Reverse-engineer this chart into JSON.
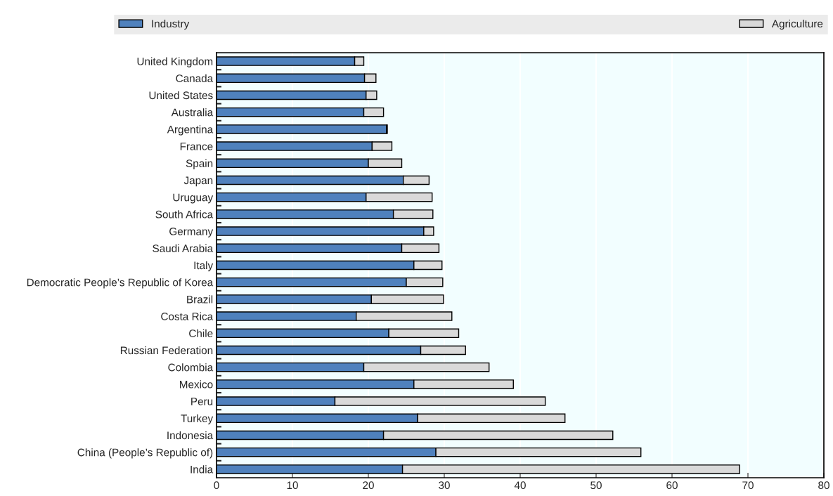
{
  "chart_data": {
    "type": "bar",
    "orientation": "horizontal",
    "stacked": true,
    "categories": [
      "United Kingdom",
      "Canada",
      "United States",
      "Australia",
      "Argentina",
      "France",
      "Spain",
      "Japan",
      "Uruguay",
      "South Africa",
      "Germany",
      "Saudi Arabia",
      "Italy",
      "Democratic People’s Republic of Korea",
      "Brazil",
      "Costa Rica",
      "Chile",
      "Russian Federation",
      "Colombia",
      "Mexico",
      "Peru",
      "Turkey",
      "Indonesia",
      "China (People’s Republic of)",
      "India"
    ],
    "series": [
      {
        "name": "Industry",
        "color": "#4f81bd",
        "values": [
          18.2,
          19.5,
          19.7,
          19.4,
          22.4,
          20.5,
          20.0,
          24.6,
          19.7,
          23.3,
          27.3,
          24.4,
          26.0,
          25.0,
          20.4,
          18.4,
          22.7,
          26.9,
          19.4,
          26.0,
          15.6,
          26.5,
          22.0,
          28.9,
          24.5
        ]
      },
      {
        "name": "Agriculture",
        "color": "#d9d9d9",
        "values": [
          1.2,
          1.5,
          1.4,
          2.6,
          0.1,
          2.6,
          4.4,
          3.4,
          8.7,
          5.2,
          1.3,
          4.9,
          3.7,
          4.8,
          9.5,
          12.6,
          9.2,
          5.9,
          16.5,
          13.1,
          27.7,
          19.4,
          30.2,
          27.0,
          44.4
        ]
      }
    ],
    "xlim": [
      0,
      80
    ],
    "xticks": [
      0,
      10,
      20,
      30,
      40,
      50,
      60,
      70,
      80
    ],
    "grid": "x",
    "legend": "top"
  }
}
